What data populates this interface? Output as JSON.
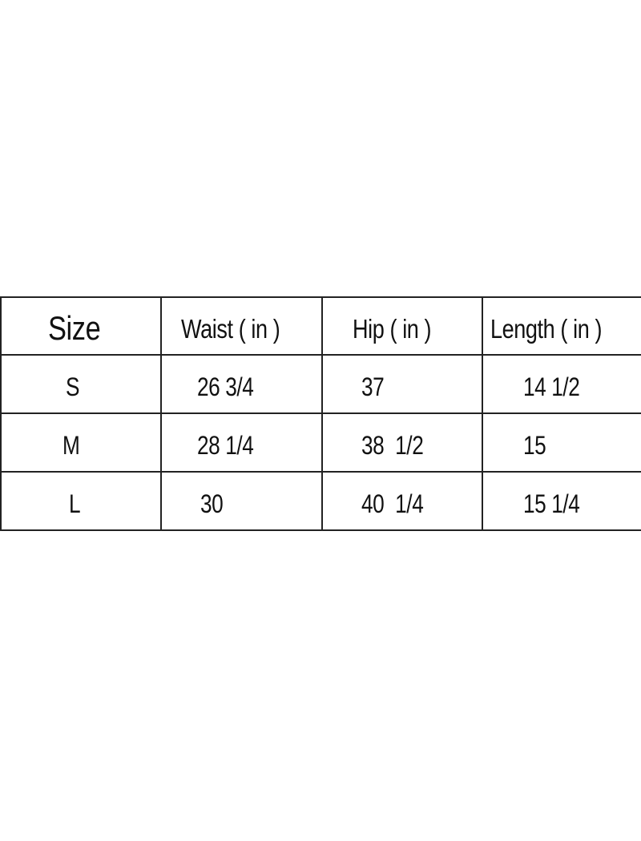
{
  "table": {
    "headers": [
      "Size",
      "Waist ( in )",
      "Hip ( in )",
      "Length ( in )"
    ],
    "rows": [
      [
        "S",
        "26 3/4",
        "37",
        "14 1/2"
      ],
      [
        "M",
        "28 1/4",
        "38  1/2",
        "15"
      ],
      [
        "L",
        "30",
        "40  1/4",
        "15 1/4"
      ]
    ]
  }
}
